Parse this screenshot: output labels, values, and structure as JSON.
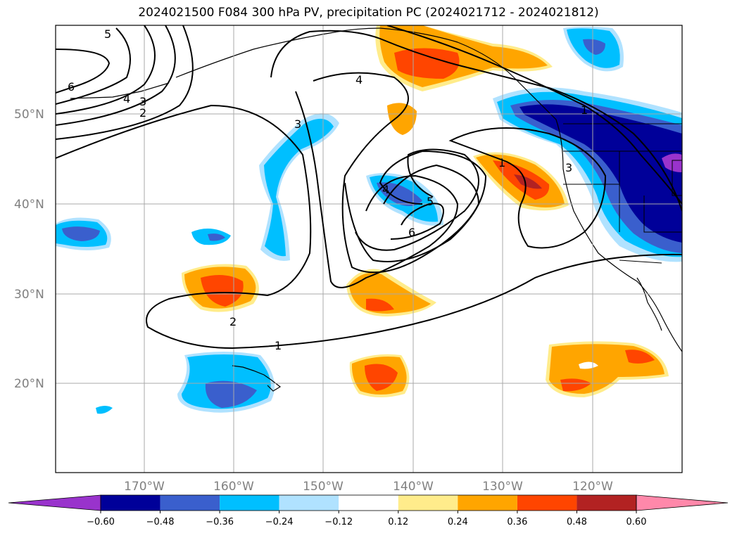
{
  "title": "2024021500 F084 300 hPa PV, precipitation PC (2024021712 - 2024021812)",
  "lat_labels": [
    "50°N",
    "40°N",
    "30°N",
    "20°N"
  ],
  "lon_labels": [
    "170°W",
    "160°W",
    "150°W",
    "140°W",
    "130°W",
    "120°W"
  ],
  "colorbar": {
    "ticks": [
      "−0.60",
      "−0.48",
      "−0.36",
      "−0.24",
      "−0.12",
      "0.12",
      "0.24",
      "0.36",
      "0.48",
      "0.60"
    ],
    "colors": [
      "#9933cc",
      "#000099",
      "#3a5fcd",
      "#00bfff",
      "#b0e2ff",
      "#ffffff",
      "#ffec8b",
      "#ffa500",
      "#ff4500",
      "#b22222",
      "#ff88aa"
    ]
  },
  "contour_labels": {
    "c5": "5",
    "c6": "6",
    "c4": "4",
    "c3": "3",
    "c2": "2",
    "c3b": "3",
    "c4top": "4",
    "c1ne": "1",
    "c3ne": "3",
    "c1c": "1",
    "c4c": "4",
    "c5c": "5",
    "c6c": "6",
    "c2s": "2",
    "c1s": "1"
  }
}
